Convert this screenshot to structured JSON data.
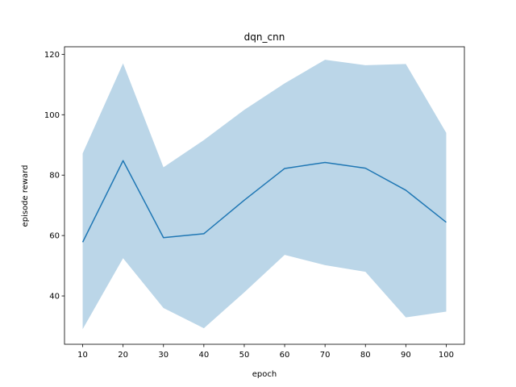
{
  "chart_data": {
    "type": "line",
    "title": "dqn_cnn",
    "xlabel": "epoch",
    "ylabel": "episode reward",
    "x": [
      10,
      20,
      30,
      40,
      50,
      60,
      70,
      80,
      90,
      100
    ],
    "series": [
      {
        "values": [
          57.8,
          84.8,
          59.3,
          60.6,
          71.7,
          82.2,
          84.2,
          82.3,
          75.0,
          64.4
        ],
        "band_upper": [
          87.2,
          117.0,
          82.6,
          91.6,
          101.6,
          110.4,
          118.2,
          116.4,
          116.8,
          94.0
        ],
        "band_lower": [
          29.0,
          52.5,
          36.0,
          29.3,
          41.2,
          53.6,
          50.2,
          48.0,
          32.9,
          34.8
        ]
      }
    ],
    "xlim": [
      5.5,
      104.5
    ],
    "ylim": [
      24.0,
      122.5
    ],
    "xticks": [
      10,
      20,
      30,
      40,
      50,
      60,
      70,
      80,
      90,
      100
    ],
    "yticks": [
      40,
      60,
      80,
      100,
      120
    ],
    "grid": false,
    "colors": {
      "line": "#1f77b4",
      "band": "#1f77b4",
      "band_opacity": 0.3
    }
  }
}
